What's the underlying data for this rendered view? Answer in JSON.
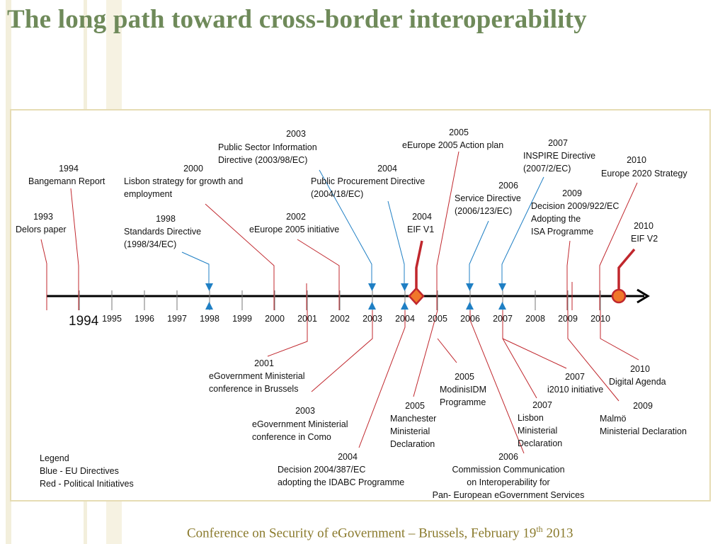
{
  "title": "The long path toward cross-border interoperability",
  "footer": {
    "text": "Conference on Security of eGovernment – Brussels, February 19",
    "sup": "th",
    "year": " 2013"
  },
  "axis": {
    "big_year": "1994",
    "ticks": [
      "1995",
      "1996",
      "1997",
      "1998",
      "1999",
      "2000",
      "2001",
      "2002",
      "2003",
      "2004",
      "2005",
      "2006",
      "2007",
      "2008",
      "2009",
      "2010"
    ]
  },
  "legend": {
    "title": "Legend",
    "blue": "Blue - EU Directives",
    "red": "Red - Political Initiatives"
  },
  "colors": {
    "red": "#c0272d",
    "blue": "#1f7fc4",
    "axis": "#000000",
    "frame": "#e6dcb4",
    "title": "#6f8a5a",
    "footer": "#8a7a2c"
  },
  "events_above": {
    "e1993": {
      "year": "1993",
      "text": "Delors paper"
    },
    "e1994": {
      "year": "1994",
      "text": "Bangemann Report"
    },
    "e1998": {
      "year": "1998",
      "text": "Standards Directive\n(1998/34/EC)"
    },
    "e2000": {
      "year": "2000",
      "text": "Lisbon strategy for growth and\nemployment"
    },
    "e2002": {
      "year": "2002",
      "text": "eEurope 2005 initiative"
    },
    "e2003": {
      "year": "2003",
      "text": "Public Sector Information\nDirective (2003/98/EC)"
    },
    "e2004a": {
      "year": "2004",
      "text": "Public Procurement Directive\n(2004/18/EC)"
    },
    "e2004b": {
      "year": "2004",
      "text": "EIF V1"
    },
    "e2005": {
      "year": "2005",
      "text": "eEurope 2005 Action plan"
    },
    "e2006": {
      "year": "2006",
      "text": "Service Directive\n(2006/123/EC)"
    },
    "e2007": {
      "year": "2007",
      "text": "INSPIRE Directive\n(2007/2/EC)"
    },
    "e2009": {
      "year": "2009",
      "text": "Decision 2009/922/EC\nAdopting the\nISA Programme"
    },
    "e2010a": {
      "year": "2010",
      "text": "Europe 2020 Strategy"
    },
    "e2010b": {
      "year": "2010",
      "text": "EIF V2"
    }
  },
  "events_below": {
    "b2001": {
      "year": "2001",
      "text": "eGovernment Ministerial\nconference in Brussels"
    },
    "b2003": {
      "year": "2003",
      "text": "eGovernment Ministerial\nconference in Como"
    },
    "b2004": {
      "year": "2004",
      "text": "Decision 2004/387/EC\nadopting the IDABC Programme"
    },
    "b2005a": {
      "year": "2005",
      "text": "Manchester\nMinisterial\nDeclaration"
    },
    "b2005b": {
      "year": "2005",
      "text": "ModinisIDM\nProgramme"
    },
    "b2006": {
      "year": "2006",
      "text": "Commission Communication\non Interoperability for\nPan- European eGovernment Services"
    },
    "b2007a": {
      "year": "2007",
      "text": "Lisbon\nMinisterial\nDeclaration"
    },
    "b2007b": {
      "year": "2007",
      "text": "i2010 initiative"
    },
    "b2009": {
      "year": "2009",
      "text": "Malmö\nMinisterial Declaration"
    },
    "b2010": {
      "year": "2010",
      "text": "Digital Agenda"
    }
  }
}
